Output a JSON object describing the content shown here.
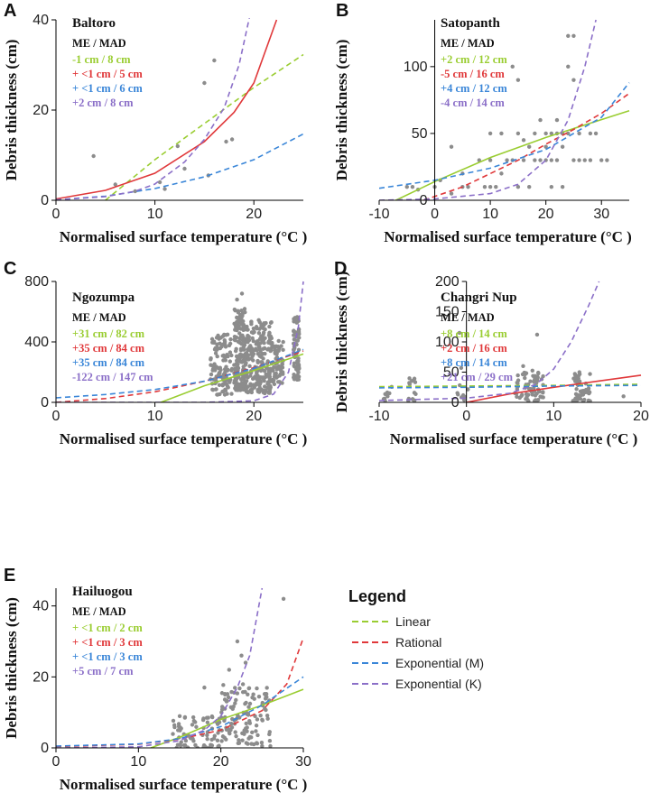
{
  "legend": {
    "title": "Legend",
    "items": [
      {
        "label": "Linear",
        "color": "#9ACD32"
      },
      {
        "label": "Rational",
        "color": "#E0383A"
      },
      {
        "label": "Exponential (M)",
        "color": "#3A86D8"
      },
      {
        "label": "Exponential (K)",
        "color": "#8B6FC8"
      }
    ]
  },
  "colors": {
    "points": "#8c8c8c",
    "axis": "#000000"
  },
  "chart_data": [
    {
      "panel": "A",
      "title": "Baltoro",
      "type": "scatter",
      "xlabel": "Normalised surface temperature (°C )",
      "ylabel": "Debris thickness (cm)",
      "xlim": [
        0,
        25
      ],
      "ylim": [
        0,
        40
      ],
      "xticks": [
        0,
        10,
        20
      ],
      "yticks": [
        0,
        20,
        40
      ],
      "stats_header": "ME / MAD",
      "stats": [
        "-1 cm / 8 cm",
        "+ <1 cm / 5 cm",
        "+ <1 cm / 6 cm",
        "+2 cm / 8 cm"
      ],
      "points": [
        [
          3.8,
          9.8
        ],
        [
          6,
          3.5
        ],
        [
          12.3,
          12
        ],
        [
          15,
          26
        ],
        [
          15.4,
          5.5
        ],
        [
          16,
          31
        ],
        [
          17.2,
          13
        ],
        [
          17.8,
          13.5
        ],
        [
          10.5,
          4
        ],
        [
          8,
          2
        ],
        [
          13,
          7
        ],
        [
          11,
          2.5
        ]
      ],
      "curves": [
        {
          "model": "Linear",
          "dash": true,
          "pts": [
            [
              5,
              0
            ],
            [
              10,
              9
            ],
            [
              15,
              17
            ],
            [
              20,
              25
            ],
            [
              25,
              32.3
            ]
          ]
        },
        {
          "model": "Rational",
          "dash": false,
          "pts": [
            [
              0,
              0.3
            ],
            [
              5,
              2.2
            ],
            [
              10,
              6
            ],
            [
              15,
              13
            ],
            [
              18,
              19.5
            ],
            [
              20,
              26
            ],
            [
              22.3,
              40
            ]
          ]
        },
        {
          "model": "Exponential (M)",
          "dash": true,
          "pts": [
            [
              0,
              0.1
            ],
            [
              5,
              0.9
            ],
            [
              10,
              2.6
            ],
            [
              15,
              5.2
            ],
            [
              20,
              9
            ],
            [
              25,
              14.7
            ]
          ]
        },
        {
          "model": "Exponential (K)",
          "dash": true,
          "pts": [
            [
              0,
              0.1
            ],
            [
              5,
              0.8
            ],
            [
              8,
              2
            ],
            [
              10,
              3.6
            ],
            [
              13,
              8.5
            ],
            [
              15,
              13.5
            ],
            [
              17,
              20.5
            ],
            [
              18.5,
              30
            ],
            [
              19.6,
              41
            ]
          ]
        }
      ]
    },
    {
      "panel": "B",
      "title": "Satopanth",
      "type": "scatter",
      "xlabel": "Normalised surface temperature (°C )",
      "ylabel": "Debris thickness (cm)",
      "xlim": [
        -10,
        35
      ],
      "ylim": [
        0,
        135
      ],
      "xticks": [
        -10,
        0,
        10,
        20,
        30
      ],
      "yticks": [
        0,
        50,
        100
      ],
      "stats_header": "ME / MAD",
      "stats": [
        "+2 cm / 12 cm",
        "-5 cm / 16 cm",
        "+4 cm / 12 cm",
        "-4 cm / 14 cm"
      ],
      "points": [
        [
          -5,
          10
        ],
        [
          -4,
          10
        ],
        [
          -3,
          8
        ],
        [
          0,
          10
        ],
        [
          1,
          15
        ],
        [
          3,
          40
        ],
        [
          3,
          5
        ],
        [
          5,
          20
        ],
        [
          5,
          10
        ],
        [
          6,
          10
        ],
        [
          8,
          30
        ],
        [
          9,
          10
        ],
        [
          10,
          30
        ],
        [
          10,
          50
        ],
        [
          10,
          10
        ],
        [
          11,
          10
        ],
        [
          12,
          20
        ],
        [
          12,
          50
        ],
        [
          13,
          30
        ],
        [
          14,
          30
        ],
        [
          14,
          100
        ],
        [
          15,
          50
        ],
        [
          15,
          90
        ],
        [
          15,
          10
        ],
        [
          16,
          30
        ],
        [
          16,
          45
        ],
        [
          17,
          40
        ],
        [
          17,
          10
        ],
        [
          18,
          50
        ],
        [
          18,
          30
        ],
        [
          19,
          30
        ],
        [
          19,
          60
        ],
        [
          20,
          50
        ],
        [
          20,
          40
        ],
        [
          20,
          30
        ],
        [
          21,
          10
        ],
        [
          21,
          30
        ],
        [
          21,
          50
        ],
        [
          22,
          50
        ],
        [
          22,
          60
        ],
        [
          22,
          30
        ],
        [
          23,
          50
        ],
        [
          23,
          40
        ],
        [
          23,
          10
        ],
        [
          24,
          50
        ],
        [
          24,
          100
        ],
        [
          24,
          123
        ],
        [
          25,
          123
        ],
        [
          25,
          90
        ],
        [
          25,
          30
        ],
        [
          26,
          30
        ],
        [
          26,
          50
        ],
        [
          27,
          30
        ],
        [
          28,
          30
        ],
        [
          28,
          50
        ],
        [
          29,
          50
        ],
        [
          30,
          30
        ],
        [
          31,
          30
        ]
      ],
      "curves": [
        {
          "model": "Linear",
          "dash": false,
          "pts": [
            [
              -7,
              0
            ],
            [
              0,
              14
            ],
            [
              10,
              32
            ],
            [
              20,
              47
            ],
            [
              35,
              67
            ]
          ]
        },
        {
          "model": "Rational",
          "dash": true,
          "pts": [
            [
              -2,
              0
            ],
            [
              5,
              10
            ],
            [
              10,
              20
            ],
            [
              15,
              30
            ],
            [
              20,
              42
            ],
            [
              25,
              53
            ],
            [
              30,
              65
            ],
            [
              35,
              80
            ]
          ]
        },
        {
          "model": "Exponential (M)",
          "dash": true,
          "pts": [
            [
              -10,
              9
            ],
            [
              0,
              15
            ],
            [
              10,
              24
            ],
            [
              20,
              38
            ],
            [
              30,
              62
            ],
            [
              35,
              88
            ]
          ]
        },
        {
          "model": "Exponential (K)",
          "dash": true,
          "pts": [
            [
              -10,
              0
            ],
            [
              0,
              1
            ],
            [
              10,
              5
            ],
            [
              15,
              12
            ],
            [
              20,
              30
            ],
            [
              24,
              60
            ],
            [
              27,
              100
            ],
            [
              29,
              135
            ]
          ]
        }
      ]
    },
    {
      "panel": "C",
      "title": "Ngozumpa",
      "type": "scatter",
      "xlabel": "Normalised surface temperature (°C )",
      "ylabel": "",
      "xlim": [
        0,
        25
      ],
      "ylim": [
        0,
        800
      ],
      "xticks": [
        0,
        10,
        20
      ],
      "yticks": [
        0,
        400,
        800
      ],
      "stats_header": "ME / MAD",
      "stats": [
        "+31 cm / 82 cm",
        "+35 cm / 84 cm",
        "+35 cm / 84 cm",
        "-122 cm / 147 cm"
      ],
      "clusters": [
        {
          "x0": 15.6,
          "x1": 17.8,
          "y0": 50,
          "y1": 450,
          "n": 120
        },
        {
          "x0": 18.0,
          "x1": 19.2,
          "y0": 80,
          "y1": 620,
          "n": 160
        },
        {
          "x0": 19.2,
          "x1": 21.8,
          "y0": 60,
          "y1": 550,
          "n": 220
        },
        {
          "x0": 21.8,
          "x1": 23.0,
          "y0": 120,
          "y1": 420,
          "n": 60
        },
        {
          "x0": 24.0,
          "x1": 24.6,
          "y0": 150,
          "y1": 580,
          "n": 70
        }
      ],
      "points": [
        [
          18.8,
          720
        ],
        [
          18.3,
          680
        ]
      ],
      "curves": [
        {
          "model": "Linear",
          "dash": false,
          "pts": [
            [
              10.6,
              0
            ],
            [
              15,
              110
            ],
            [
              20,
              210
            ],
            [
              25,
              320
            ]
          ]
        },
        {
          "model": "Rational",
          "dash": true,
          "pts": [
            [
              0,
              0
            ],
            [
              5,
              25
            ],
            [
              10,
              70
            ],
            [
              15,
              140
            ],
            [
              20,
              230
            ],
            [
              25,
              340
            ]
          ]
        },
        {
          "model": "Exponential (M)",
          "dash": true,
          "pts": [
            [
              0,
              30
            ],
            [
              5,
              52
            ],
            [
              10,
              85
            ],
            [
              15,
              140
            ],
            [
              20,
              225
            ],
            [
              25,
              350
            ]
          ]
        },
        {
          "model": "Exponential (K)",
          "dash": true,
          "pts": [
            [
              0,
              0
            ],
            [
              15,
              0
            ],
            [
              20,
              10
            ],
            [
              22,
              55
            ],
            [
              23.5,
              200
            ],
            [
              24.5,
              500
            ],
            [
              25,
              800
            ]
          ]
        }
      ]
    },
    {
      "panel": "D",
      "title": "Changri Nup",
      "type": "scatter",
      "xlabel": "Normalised surface temperature (°C )",
      "ylabel": "Debris thickness (cm)",
      "xlim": [
        -10,
        20
      ],
      "ylim": [
        0,
        200
      ],
      "xticks": [
        -10,
        0,
        10,
        20
      ],
      "yticks": [
        0,
        50,
        100,
        150,
        200
      ],
      "stats_header": "ME / MAD",
      "stats": [
        "+8 cm / 14 cm",
        "+2 cm / 16 cm",
        "+8 cm / 14 cm",
        "+21 cm / 29 cm"
      ],
      "clusters": [
        {
          "x0": -9.5,
          "x1": -8.5,
          "y0": 2,
          "y1": 30,
          "n": 10
        },
        {
          "x0": -6.8,
          "x1": -5.8,
          "y0": 2,
          "y1": 40,
          "n": 14
        },
        {
          "x0": -1.2,
          "x1": 0.2,
          "y0": 2,
          "y1": 30,
          "n": 10
        },
        {
          "x0": 5.5,
          "x1": 8.8,
          "y0": 2,
          "y1": 55,
          "n": 70
        },
        {
          "x0": 12.2,
          "x1": 14.2,
          "y0": 2,
          "y1": 55,
          "n": 50
        }
      ],
      "points": [
        [
          -0.8,
          115
        ],
        [
          -0.6,
          57
        ],
        [
          8.1,
          112
        ],
        [
          6.5,
          60
        ],
        [
          18,
          10
        ]
      ],
      "curves": [
        {
          "model": "Linear",
          "dash": true,
          "pts": [
            [
              -10,
              26
            ],
            [
              0,
              27
            ],
            [
              10,
              28
            ],
            [
              20,
              30
            ]
          ]
        },
        {
          "model": "Rational",
          "dash": false,
          "pts": [
            [
              0,
              0
            ],
            [
              5,
              14
            ],
            [
              10,
              25
            ],
            [
              15,
              35
            ],
            [
              20,
              45
            ]
          ]
        },
        {
          "model": "Exponential (M)",
          "dash": true,
          "pts": [
            [
              -10,
              24
            ],
            [
              0,
              25
            ],
            [
              10,
              27
            ],
            [
              20,
              28
            ]
          ]
        },
        {
          "model": "Exponential (K)",
          "dash": true,
          "pts": [
            [
              -10,
              3
            ],
            [
              0,
              7
            ],
            [
              5,
              15
            ],
            [
              8,
              30
            ],
            [
              10,
              55
            ],
            [
              12,
              100
            ],
            [
              14,
              160
            ],
            [
              15.2,
              200
            ]
          ]
        }
      ]
    },
    {
      "panel": "E",
      "title": "Hailuogou",
      "type": "scatter",
      "xlabel": "Normalised surface temperature (°C )",
      "ylabel": "Debris thickness (cm)",
      "xlim": [
        0,
        30
      ],
      "ylim": [
        0,
        45
      ],
      "xticks": [
        0,
        10,
        20,
        30
      ],
      "yticks": [
        0,
        20,
        40
      ],
      "stats_header": "ME / MAD",
      "stats": [
        "+ <1 cm / 2 cm",
        "+ <1 cm / 3 cm",
        "+ <1 cm / 3 cm",
        "+5 cm / 7 cm"
      ],
      "clusters": [
        {
          "x0": 14,
          "x1": 20,
          "y0": 0,
          "y1": 9,
          "n": 70
        },
        {
          "x0": 20,
          "x1": 26,
          "y0": 1,
          "y1": 18,
          "n": 120
        }
      ],
      "points": [
        [
          27.6,
          42
        ],
        [
          22,
          30
        ],
        [
          22.5,
          26
        ],
        [
          21,
          22
        ],
        [
          23,
          24
        ],
        [
          18,
          17
        ],
        [
          24,
          1
        ],
        [
          25,
          0.5
        ],
        [
          26,
          0.5
        ]
      ],
      "curves": [
        {
          "model": "Linear",
          "dash": false,
          "pts": [
            [
              11.5,
              0
            ],
            [
              15,
              3
            ],
            [
              20,
              8
            ],
            [
              25,
              12
            ],
            [
              30,
              16.5
            ]
          ]
        },
        {
          "model": "Rational",
          "dash": true,
          "pts": [
            [
              0,
              0.4
            ],
            [
              10,
              1
            ],
            [
              15,
              2.5
            ],
            [
              20,
              5
            ],
            [
              25,
              10.5
            ],
            [
              28,
              18
            ],
            [
              30,
              31
            ]
          ]
        },
        {
          "model": "Exponential (M)",
          "dash": true,
          "pts": [
            [
              0,
              0.5
            ],
            [
              10,
              1.1
            ],
            [
              15,
              2.6
            ],
            [
              20,
              6
            ],
            [
              25,
              12
            ],
            [
              30,
              20
            ]
          ]
        },
        {
          "model": "Exponential (K)",
          "dash": true,
          "pts": [
            [
              0,
              0
            ],
            [
              10,
              0.3
            ],
            [
              15,
              2
            ],
            [
              18,
              5
            ],
            [
              20,
              9
            ],
            [
              22,
              17
            ],
            [
              23.5,
              26
            ],
            [
              25,
              45
            ]
          ]
        }
      ]
    }
  ]
}
